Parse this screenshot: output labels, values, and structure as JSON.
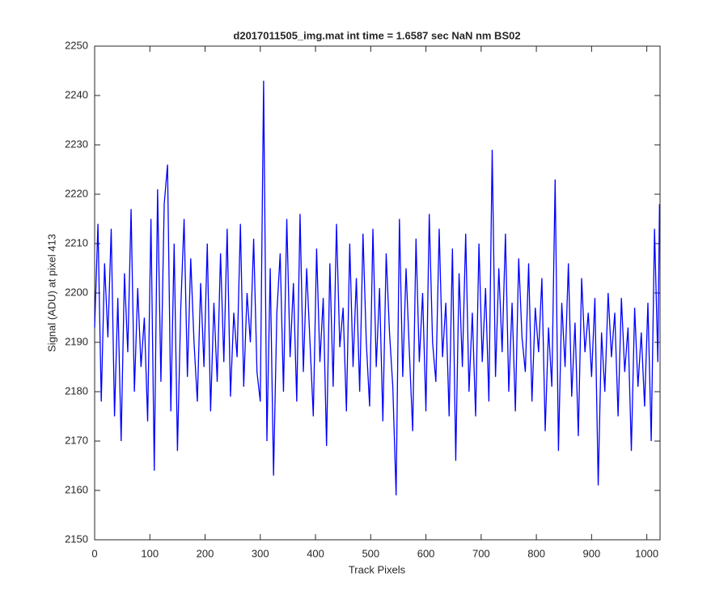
{
  "chart_data": {
    "type": "line",
    "title": "d2017011505_img.mat int time = 1.6587 sec  NaN nm BS02",
    "x_label": "Track Pixels",
    "y_label": "Signal (ADU) at pixel 413",
    "x": [
      0,
      6,
      12,
      18,
      24,
      30,
      36,
      42,
      48,
      54,
      60,
      66,
      72,
      78,
      84,
      90,
      96,
      102,
      108,
      114,
      120,
      126,
      132,
      138,
      144,
      150,
      156,
      162,
      168,
      174,
      180,
      186,
      192,
      198,
      204,
      210,
      216,
      222,
      228,
      234,
      240,
      246,
      252,
      258,
      264,
      270,
      276,
      282,
      288,
      294,
      300,
      306,
      312,
      318,
      324,
      330,
      336,
      342,
      348,
      354,
      360,
      366,
      372,
      378,
      384,
      390,
      396,
      402,
      408,
      414,
      420,
      426,
      432,
      438,
      444,
      450,
      456,
      462,
      468,
      474,
      480,
      486,
      492,
      498,
      504,
      510,
      516,
      522,
      528,
      534,
      540,
      546,
      552,
      558,
      564,
      570,
      576,
      582,
      588,
      594,
      600,
      606,
      612,
      618,
      624,
      630,
      636,
      642,
      648,
      654,
      660,
      666,
      672,
      678,
      684,
      690,
      696,
      702,
      708,
      714,
      720,
      726,
      732,
      738,
      744,
      750,
      756,
      762,
      768,
      774,
      780,
      786,
      792,
      798,
      804,
      810,
      816,
      822,
      828,
      834,
      840,
      846,
      852,
      858,
      864,
      870,
      876,
      882,
      888,
      894,
      900,
      906,
      912,
      918,
      924,
      930,
      936,
      942,
      948,
      954,
      960,
      966,
      972,
      978,
      984,
      990,
      996,
      1002,
      1008,
      1014,
      1020,
      1023
    ],
    "series": [
      {
        "color": "#0000ff",
        "values": [
          2193,
          2214,
          2178,
          2206,
          2191,
          2213,
          2175,
          2199,
          2170,
          2204,
          2188,
          2217,
          2180,
          2201,
          2185,
          2195,
          2174,
          2215,
          2164,
          2221,
          2182,
          2218,
          2226,
          2176,
          2210,
          2168,
          2197,
          2215,
          2183,
          2207,
          2190,
          2178,
          2202,
          2185,
          2210,
          2176,
          2198,
          2182,
          2208,
          2186,
          2213,
          2179,
          2196,
          2187,
          2214,
          2181,
          2200,
          2190,
          2211,
          2184,
          2178,
          2243,
          2170,
          2205,
          2163,
          2196,
          2208,
          2180,
          2215,
          2187,
          2202,
          2178,
          2216,
          2184,
          2205,
          2190,
          2175,
          2209,
          2186,
          2199,
          2169,
          2206,
          2181,
          2214,
          2189,
          2197,
          2176,
          2210,
          2185,
          2203,
          2180,
          2212,
          2190,
          2177,
          2213,
          2185,
          2201,
          2174,
          2208,
          2192,
          2181,
          2159,
          2215,
          2183,
          2205,
          2188,
          2172,
          2211,
          2186,
          2200,
          2176,
          2216,
          2190,
          2182,
          2213,
          2187,
          2198,
          2175,
          2209,
          2166,
          2204,
          2185,
          2212,
          2180,
          2196,
          2175,
          2210,
          2186,
          2201,
          2178,
          2229,
          2183,
          2205,
          2188,
          2212,
          2180,
          2198,
          2176,
          2207,
          2191,
          2184,
          2206,
          2178,
          2197,
          2188,
          2203,
          2172,
          2193,
          2181,
          2223,
          2168,
          2198,
          2185,
          2206,
          2179,
          2194,
          2171,
          2203,
          2188,
          2196,
          2183,
          2199,
          2161,
          2192,
          2180,
          2200,
          2187,
          2196,
          2175,
          2199,
          2184,
          2193,
          2168,
          2197,
          2181,
          2192,
          2177,
          2198,
          2170,
          2213,
          2186,
          2218
        ]
      }
    ],
    "xlim": [
      0,
      1024
    ],
    "xticks": [
      0,
      100,
      200,
      300,
      400,
      500,
      600,
      700,
      800,
      900,
      1000
    ],
    "ylim": [
      2150,
      2250
    ],
    "yticks": [
      2150,
      2160,
      2170,
      2180,
      2190,
      2200,
      2210,
      2220,
      2230,
      2240,
      2250
    ]
  }
}
